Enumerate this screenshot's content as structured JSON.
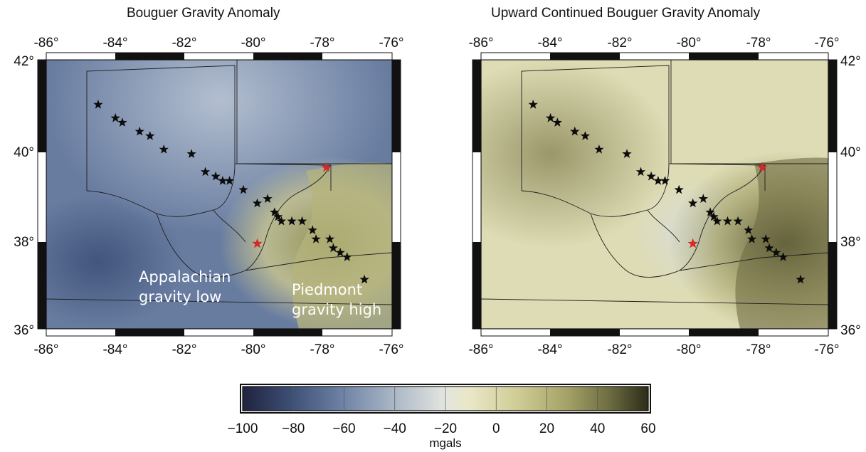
{
  "panels": [
    {
      "title": "Bouguer Gravity Anomaly",
      "annotations": [
        "Appalachian",
        "gravity low",
        "Piedmont",
        "gravity high"
      ]
    },
    {
      "title": "Upward Continued Bouguer Gravity Anomaly"
    }
  ],
  "axes": {
    "lon_ticks": [
      "-86°",
      "-84°",
      "-82°",
      "-80°",
      "-78°",
      "-76°"
    ],
    "lat_ticks": [
      "42°",
      "40°",
      "38°",
      "36°"
    ],
    "lon_range": [
      -86,
      -76
    ],
    "lat_range": [
      36,
      42
    ]
  },
  "colorbar": {
    "ticks": [
      "-100",
      "-80",
      "-60",
      "-40",
      "-20",
      "0",
      "20",
      "40",
      "60"
    ],
    "unit": "mgals",
    "range": [
      -100,
      60
    ],
    "colors": [
      "#20233f",
      "#3d4f75",
      "#6f84a6",
      "#a9b6c6",
      "#e4e6df",
      "#e9e7c6",
      "#cfcc94",
      "#a4a267",
      "#6f6f43",
      "#2c2c19"
    ]
  },
  "stations": [
    {
      "lon": -84.5,
      "lat": 41.0,
      "color": "black"
    },
    {
      "lon": -84.0,
      "lat": 40.7,
      "color": "black"
    },
    {
      "lon": -83.8,
      "lat": 40.6,
      "color": "black"
    },
    {
      "lon": -83.3,
      "lat": 40.4,
      "color": "black"
    },
    {
      "lon": -83.0,
      "lat": 40.3,
      "color": "black"
    },
    {
      "lon": -82.6,
      "lat": 40.0,
      "color": "black"
    },
    {
      "lon": -81.8,
      "lat": 39.9,
      "color": "black"
    },
    {
      "lon": -81.4,
      "lat": 39.5,
      "color": "black"
    },
    {
      "lon": -81.1,
      "lat": 39.4,
      "color": "black"
    },
    {
      "lon": -80.9,
      "lat": 39.3,
      "color": "black"
    },
    {
      "lon": -80.7,
      "lat": 39.3,
      "color": "black"
    },
    {
      "lon": -80.3,
      "lat": 39.1,
      "color": "black"
    },
    {
      "lon": -79.9,
      "lat": 38.8,
      "color": "black"
    },
    {
      "lon": -79.6,
      "lat": 38.9,
      "color": "black"
    },
    {
      "lon": -79.4,
      "lat": 38.6,
      "color": "black"
    },
    {
      "lon": -79.3,
      "lat": 38.5,
      "color": "black"
    },
    {
      "lon": -79.2,
      "lat": 38.4,
      "color": "black"
    },
    {
      "lon": -78.9,
      "lat": 38.4,
      "color": "black"
    },
    {
      "lon": -78.6,
      "lat": 38.4,
      "color": "black"
    },
    {
      "lon": -78.3,
      "lat": 38.2,
      "color": "black"
    },
    {
      "lon": -78.2,
      "lat": 38.0,
      "color": "black"
    },
    {
      "lon": -77.8,
      "lat": 38.0,
      "color": "black"
    },
    {
      "lon": -77.7,
      "lat": 37.8,
      "color": "black"
    },
    {
      "lon": -77.5,
      "lat": 37.7,
      "color": "black"
    },
    {
      "lon": -77.3,
      "lat": 37.6,
      "color": "black"
    },
    {
      "lon": -76.8,
      "lat": 37.1,
      "color": "black"
    },
    {
      "lon": -77.9,
      "lat": 39.6,
      "color": "red"
    },
    {
      "lon": -79.9,
      "lat": 37.9,
      "color": "red"
    }
  ]
}
